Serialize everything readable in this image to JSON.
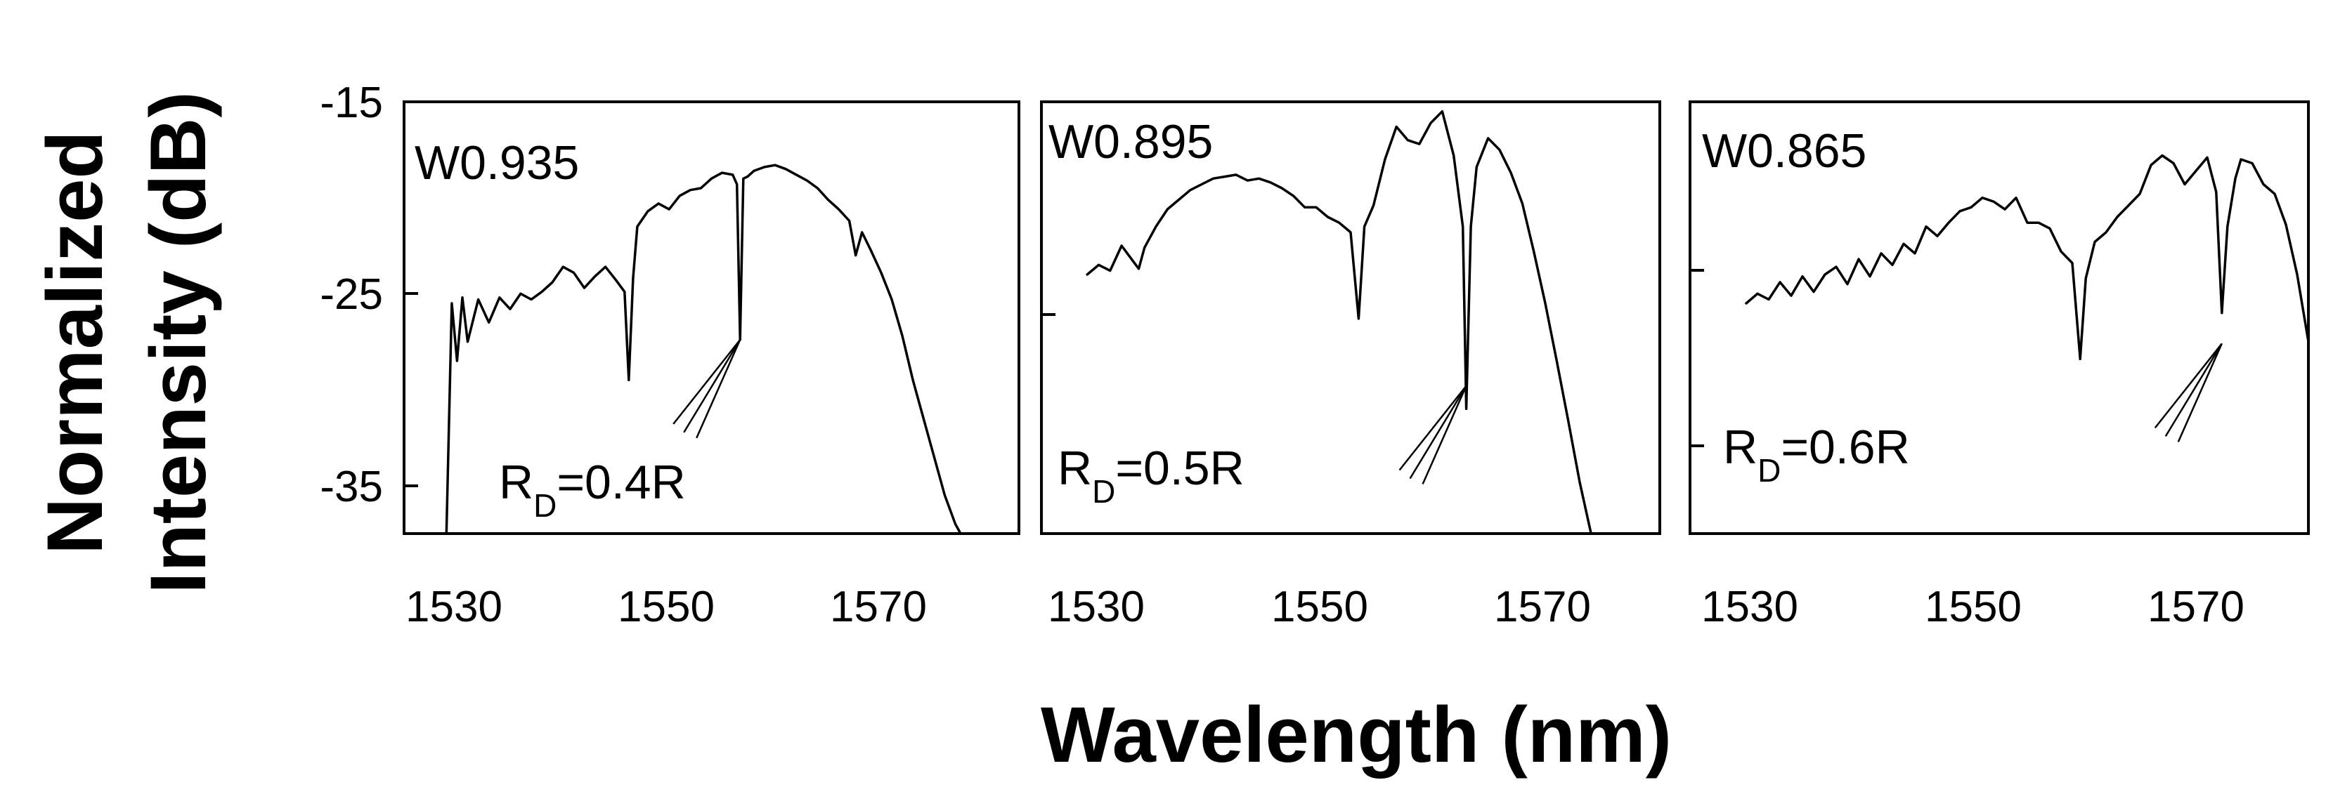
{
  "figure": {
    "xlabel": "Wavelength (nm)",
    "ylabel_line1": "Normalized",
    "ylabel_line2": "Intensity (dB)"
  },
  "chart_data": [
    {
      "type": "line",
      "title": "W0.935",
      "annotation": {
        "main": "R",
        "sub": "D",
        "rest": "=0.4R"
      },
      "xlim": [
        1526,
        1584
      ],
      "ylim": [
        -37.5,
        -15
      ],
      "xticks": [
        "1530",
        "1550",
        "1570"
      ],
      "yticks": [
        "-15",
        "-25",
        "-35"
      ],
      "arrow_target": [
        1557.7,
        -27.4
      ],
      "x": [
        1530,
        1530.5,
        1531,
        1531.5,
        1532,
        1533,
        1534,
        1535,
        1536,
        1537,
        1538,
        1539,
        1540,
        1541,
        1542,
        1543,
        1544,
        1545,
        1546,
        1546.8,
        1547.2,
        1547.6,
        1548,
        1549,
        1550,
        1551,
        1552,
        1553,
        1554,
        1555,
        1556,
        1557,
        1557.4,
        1557.7,
        1558,
        1558.4,
        1559,
        1560,
        1561,
        1562,
        1563,
        1564,
        1565,
        1566,
        1567,
        1568,
        1568.6,
        1569.2,
        1570,
        1571,
        1572,
        1573,
        1574,
        1575,
        1576,
        1577,
        1578,
        1578.5
      ],
      "y": [
        -37.5,
        -25.5,
        -28.5,
        -25.2,
        -27.5,
        -25.3,
        -26.5,
        -25.2,
        -25.8,
        -25.0,
        -25.3,
        -24.9,
        -24.4,
        -23.6,
        -23.9,
        -24.7,
        -24.1,
        -23.6,
        -24.3,
        -24.9,
        -29.5,
        -24.2,
        -21.5,
        -20.7,
        -20.3,
        -20.6,
        -19.9,
        -19.6,
        -19.5,
        -19.0,
        -18.7,
        -18.8,
        -19.3,
        -27.4,
        -19.0,
        -18.9,
        -18.6,
        -18.4,
        -18.3,
        -18.5,
        -18.8,
        -19.1,
        -19.5,
        -20.1,
        -20.6,
        -21.2,
        -23.0,
        -21.8,
        -22.7,
        -23.9,
        -25.3,
        -27.2,
        -29.5,
        -31.5,
        -33.5,
        -35.5,
        -37.0,
        -37.5
      ]
    },
    {
      "type": "line",
      "title": "W0.895",
      "annotation": {
        "main": "R",
        "sub": "D",
        "rest": "=0.5R"
      },
      "xlim": [
        1526,
        1580
      ],
      "ylim": [
        -37.5,
        -15
      ],
      "xticks": [
        "1530",
        "1550",
        "1570"
      ],
      "yticks": [
        "",
        "",
        ""
      ],
      "arrow_target": [
        1563.1,
        -29.8
      ],
      "x": [
        1530,
        1531,
        1532,
        1533,
        1534,
        1534.5,
        1535,
        1536,
        1537,
        1538,
        1539,
        1540,
        1541,
        1542,
        1543,
        1544,
        1545,
        1546,
        1547,
        1548,
        1549,
        1550,
        1551,
        1552,
        1553,
        1553.7,
        1554.2,
        1555,
        1556,
        1557,
        1558,
        1559,
        1560,
        1561,
        1562,
        1562.8,
        1563.1,
        1563.5,
        1564,
        1565,
        1566,
        1567,
        1568,
        1569,
        1570,
        1571,
        1572,
        1573,
        1574
      ],
      "y": [
        -24.0,
        -23.5,
        -23.8,
        -22.5,
        -23.3,
        -23.7,
        -22.6,
        -21.5,
        -20.6,
        -20.1,
        -19.6,
        -19.3,
        -19.0,
        -18.9,
        -18.8,
        -19.1,
        -19.0,
        -19.2,
        -19.5,
        -19.9,
        -20.5,
        -20.5,
        -21.0,
        -21.3,
        -21.8,
        -26.3,
        -21.5,
        -20.4,
        -18.0,
        -16.3,
        -17.0,
        -17.2,
        -16.1,
        -15.5,
        -17.8,
        -21.5,
        -31.0,
        -21.5,
        -18.4,
        -16.9,
        -17.5,
        -18.7,
        -20.3,
        -22.8,
        -25.5,
        -28.5,
        -31.6,
        -34.8,
        -37.5
      ]
    },
    {
      "type": "line",
      "title": "W0.865",
      "annotation": {
        "main": "R",
        "sub": "D",
        "rest": "=0.6R"
      },
      "xlim": [
        1525,
        1580
      ],
      "ylim": [
        -37.5,
        -15
      ],
      "xticks": [
        "1530",
        "1550",
        "1570"
      ],
      "yticks": [
        "",
        "",
        ""
      ],
      "arrow_target": [
        1572.3,
        -27.6
      ],
      "x": [
        1530,
        1531,
        1532,
        1533,
        1534,
        1535,
        1536,
        1537,
        1538,
        1539,
        1540,
        1541,
        1542,
        1543,
        1544,
        1545,
        1546,
        1547,
        1548,
        1549,
        1550,
        1551,
        1552,
        1553,
        1554,
        1555,
        1556,
        1557,
        1558,
        1559,
        1559.7,
        1560.2,
        1561,
        1562,
        1563,
        1564,
        1565,
        1566,
        1567,
        1568,
        1569,
        1570,
        1571,
        1571.8,
        1572.3,
        1572.8,
        1573.5,
        1574,
        1575,
        1576,
        1577,
        1578,
        1579,
        1580
      ],
      "y": [
        -25.5,
        -25.0,
        -25.3,
        -24.4,
        -25.1,
        -24.1,
        -24.9,
        -24.0,
        -23.6,
        -24.5,
        -23.2,
        -24.1,
        -22.9,
        -23.5,
        -22.4,
        -22.9,
        -21.5,
        -22.0,
        -21.3,
        -20.7,
        -20.5,
        -20.0,
        -20.2,
        -20.6,
        -20.0,
        -21.3,
        -21.3,
        -21.6,
        -22.8,
        -23.4,
        -28.4,
        -24.2,
        -22.3,
        -21.8,
        -21.0,
        -20.4,
        -19.8,
        -18.3,
        -17.8,
        -18.2,
        -19.3,
        -18.6,
        -17.9,
        -19.7,
        -26.0,
        -21.5,
        -19.0,
        -18.0,
        -18.2,
        -19.3,
        -19.8,
        -21.4,
        -24.0,
        -27.5
      ]
    }
  ]
}
